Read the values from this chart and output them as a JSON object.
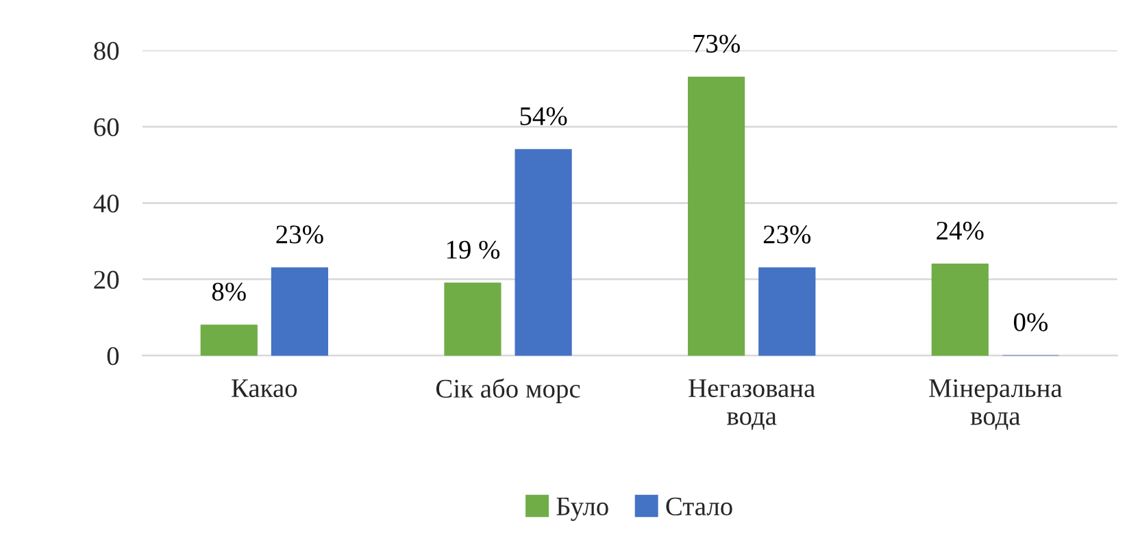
{
  "chart_data": {
    "type": "bar",
    "categories": [
      "Какао",
      "Сік або морс",
      "Негазована\nвода",
      "Мінеральна\nвода"
    ],
    "series": [
      {
        "name": "Було",
        "color": "#70ad47",
        "values": [
          8,
          19,
          73,
          24
        ],
        "value_labels": [
          "8%",
          "19 %",
          "73%",
          "24%"
        ]
      },
      {
        "name": "Стало",
        "color": "#4472c4",
        "values": [
          23,
          54,
          23,
          0
        ],
        "value_labels": [
          "23%",
          "54%",
          "23%",
          "0%"
        ]
      }
    ],
    "ylim": [
      0,
      80
    ],
    "yticks": [
      0,
      20,
      40,
      60,
      80
    ],
    "grid": "y",
    "legend": "bottom"
  }
}
